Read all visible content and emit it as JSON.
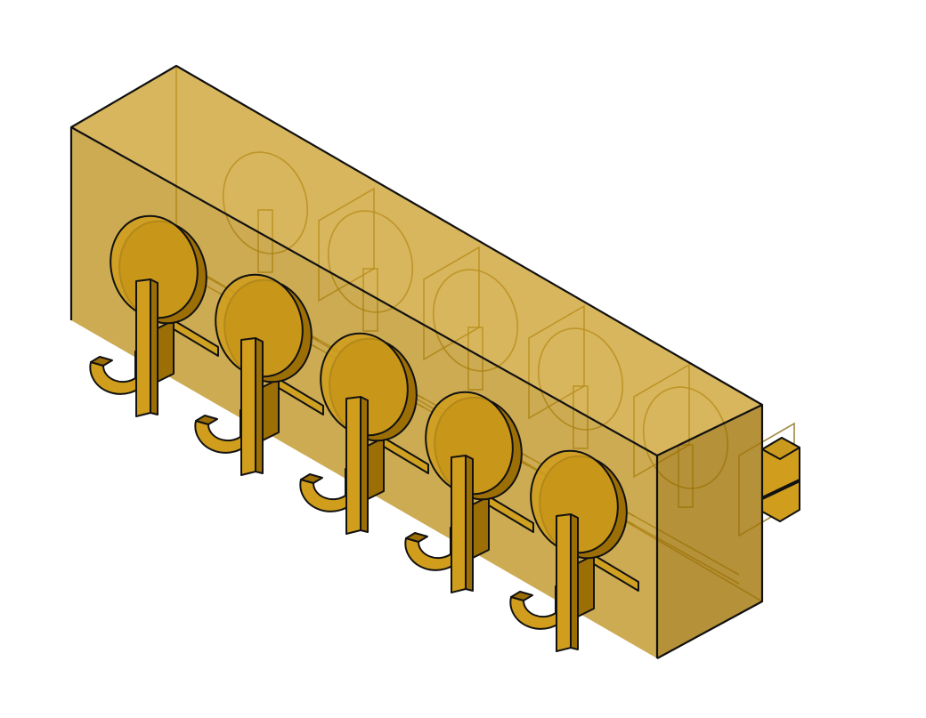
{
  "drawing": {
    "subject": "isometric-hook-rack",
    "hook_count": 5,
    "colors": {
      "background": "#ffffff",
      "body_fill": "#b98a10",
      "body_fill_alpha": 0.72,
      "top_fill": "#c99a1e",
      "side_fill": "#a27508",
      "hook_fill": "#d09e1c",
      "hook_dark": "#9c6e06",
      "outline": "#111111",
      "hidden_line": "#8a6a10"
    }
  }
}
